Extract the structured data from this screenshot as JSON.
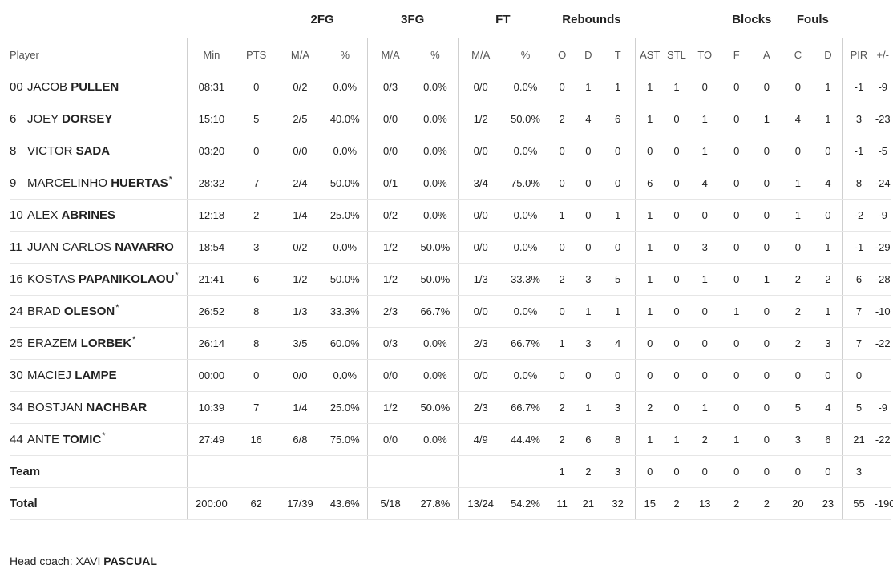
{
  "groups": {
    "fg2": "2FG",
    "fg3": "3FG",
    "ft": "FT",
    "rebounds": "Rebounds",
    "blocks": "Blocks",
    "fouls": "Fouls"
  },
  "columns": {
    "player": "Player",
    "min": "Min",
    "pts": "PTS",
    "fg2_ma": "M/A",
    "fg2_pct": "%",
    "fg3_ma": "M/A",
    "fg3_pct": "%",
    "ft_ma": "M/A",
    "ft_pct": "%",
    "reb_o": "O",
    "reb_d": "D",
    "reb_t": "T",
    "ast": "AST",
    "stl": "STL",
    "to": "TO",
    "blk_f": "F",
    "blk_a": "A",
    "foul_c": "C",
    "foul_d": "D",
    "pir": "PIR",
    "pm": "+/-"
  },
  "players": [
    {
      "num": "00",
      "first": "JACOB",
      "last": "PULLEN",
      "star": "",
      "min": "08:31",
      "pts": "0",
      "fg2_ma": "0/2",
      "fg2_pct": "0.0%",
      "fg3_ma": "0/3",
      "fg3_pct": "0.0%",
      "ft_ma": "0/0",
      "ft_pct": "0.0%",
      "reb_o": "0",
      "reb_d": "1",
      "reb_t": "1",
      "ast": "1",
      "stl": "1",
      "to": "0",
      "blk_f": "0",
      "blk_a": "0",
      "foul_c": "0",
      "foul_d": "1",
      "pir": "-1",
      "pm": "-9"
    },
    {
      "num": "6",
      "first": "JOEY",
      "last": "DORSEY",
      "star": "",
      "min": "15:10",
      "pts": "5",
      "fg2_ma": "2/5",
      "fg2_pct": "40.0%",
      "fg3_ma": "0/0",
      "fg3_pct": "0.0%",
      "ft_ma": "1/2",
      "ft_pct": "50.0%",
      "reb_o": "2",
      "reb_d": "4",
      "reb_t": "6",
      "ast": "1",
      "stl": "0",
      "to": "1",
      "blk_f": "0",
      "blk_a": "1",
      "foul_c": "4",
      "foul_d": "1",
      "pir": "3",
      "pm": "-23"
    },
    {
      "num": "8",
      "first": "VICTOR",
      "last": "SADA",
      "star": "",
      "min": "03:20",
      "pts": "0",
      "fg2_ma": "0/0",
      "fg2_pct": "0.0%",
      "fg3_ma": "0/0",
      "fg3_pct": "0.0%",
      "ft_ma": "0/0",
      "ft_pct": "0.0%",
      "reb_o": "0",
      "reb_d": "0",
      "reb_t": "0",
      "ast": "0",
      "stl": "0",
      "to": "1",
      "blk_f": "0",
      "blk_a": "0",
      "foul_c": "0",
      "foul_d": "0",
      "pir": "-1",
      "pm": "-5"
    },
    {
      "num": "9",
      "first": "MARCELINHO",
      "last": "HUERTAS",
      "star": "*",
      "min": "28:32",
      "pts": "7",
      "fg2_ma": "2/4",
      "fg2_pct": "50.0%",
      "fg3_ma": "0/1",
      "fg3_pct": "0.0%",
      "ft_ma": "3/4",
      "ft_pct": "75.0%",
      "reb_o": "0",
      "reb_d": "0",
      "reb_t": "0",
      "ast": "6",
      "stl": "0",
      "to": "4",
      "blk_f": "0",
      "blk_a": "0",
      "foul_c": "1",
      "foul_d": "4",
      "pir": "8",
      "pm": "-24"
    },
    {
      "num": "10",
      "first": "ALEX",
      "last": "ABRINES",
      "star": "",
      "min": "12:18",
      "pts": "2",
      "fg2_ma": "1/4",
      "fg2_pct": "25.0%",
      "fg3_ma": "0/2",
      "fg3_pct": "0.0%",
      "ft_ma": "0/0",
      "ft_pct": "0.0%",
      "reb_o": "1",
      "reb_d": "0",
      "reb_t": "1",
      "ast": "1",
      "stl": "0",
      "to": "0",
      "blk_f": "0",
      "blk_a": "0",
      "foul_c": "1",
      "foul_d": "0",
      "pir": "-2",
      "pm": "-9"
    },
    {
      "num": "11",
      "first": "JUAN CARLOS",
      "last": "NAVARRO",
      "star": "",
      "min": "18:54",
      "pts": "3",
      "fg2_ma": "0/2",
      "fg2_pct": "0.0%",
      "fg3_ma": "1/2",
      "fg3_pct": "50.0%",
      "ft_ma": "0/0",
      "ft_pct": "0.0%",
      "reb_o": "0",
      "reb_d": "0",
      "reb_t": "0",
      "ast": "1",
      "stl": "0",
      "to": "3",
      "blk_f": "0",
      "blk_a": "0",
      "foul_c": "0",
      "foul_d": "1",
      "pir": "-1",
      "pm": "-29"
    },
    {
      "num": "16",
      "first": "KOSTAS",
      "last": "PAPANIKOLAOU",
      "star": "*",
      "min": "21:41",
      "pts": "6",
      "fg2_ma": "1/2",
      "fg2_pct": "50.0%",
      "fg3_ma": "1/2",
      "fg3_pct": "50.0%",
      "ft_ma": "1/3",
      "ft_pct": "33.3%",
      "reb_o": "2",
      "reb_d": "3",
      "reb_t": "5",
      "ast": "1",
      "stl": "0",
      "to": "1",
      "blk_f": "0",
      "blk_a": "1",
      "foul_c": "2",
      "foul_d": "2",
      "pir": "6",
      "pm": "-28"
    },
    {
      "num": "24",
      "first": "BRAD",
      "last": "OLESON",
      "star": "*",
      "min": "26:52",
      "pts": "8",
      "fg2_ma": "1/3",
      "fg2_pct": "33.3%",
      "fg3_ma": "2/3",
      "fg3_pct": "66.7%",
      "ft_ma": "0/0",
      "ft_pct": "0.0%",
      "reb_o": "0",
      "reb_d": "1",
      "reb_t": "1",
      "ast": "1",
      "stl": "0",
      "to": "0",
      "blk_f": "1",
      "blk_a": "0",
      "foul_c": "2",
      "foul_d": "1",
      "pir": "7",
      "pm": "-10"
    },
    {
      "num": "25",
      "first": "ERAZEM",
      "last": "LORBEK",
      "star": "*",
      "min": "26:14",
      "pts": "8",
      "fg2_ma": "3/5",
      "fg2_pct": "60.0%",
      "fg3_ma": "0/3",
      "fg3_pct": "0.0%",
      "ft_ma": "2/3",
      "ft_pct": "66.7%",
      "reb_o": "1",
      "reb_d": "3",
      "reb_t": "4",
      "ast": "0",
      "stl": "0",
      "to": "0",
      "blk_f": "0",
      "blk_a": "0",
      "foul_c": "2",
      "foul_d": "3",
      "pir": "7",
      "pm": "-22"
    },
    {
      "num": "30",
      "first": "MACIEJ",
      "last": "LAMPE",
      "star": "",
      "min": "00:00",
      "pts": "0",
      "fg2_ma": "0/0",
      "fg2_pct": "0.0%",
      "fg3_ma": "0/0",
      "fg3_pct": "0.0%",
      "ft_ma": "0/0",
      "ft_pct": "0.0%",
      "reb_o": "0",
      "reb_d": "0",
      "reb_t": "0",
      "ast": "0",
      "stl": "0",
      "to": "0",
      "blk_f": "0",
      "blk_a": "0",
      "foul_c": "0",
      "foul_d": "0",
      "pir": "0",
      "pm": ""
    },
    {
      "num": "34",
      "first": "BOSTJAN",
      "last": "NACHBAR",
      "star": "",
      "min": "10:39",
      "pts": "7",
      "fg2_ma": "1/4",
      "fg2_pct": "25.0%",
      "fg3_ma": "1/2",
      "fg3_pct": "50.0%",
      "ft_ma": "2/3",
      "ft_pct": "66.7%",
      "reb_o": "2",
      "reb_d": "1",
      "reb_t": "3",
      "ast": "2",
      "stl": "0",
      "to": "1",
      "blk_f": "0",
      "blk_a": "0",
      "foul_c": "5",
      "foul_d": "4",
      "pir": "5",
      "pm": "-9"
    },
    {
      "num": "44",
      "first": "ANTE",
      "last": "TOMIC",
      "star": "*",
      "min": "27:49",
      "pts": "16",
      "fg2_ma": "6/8",
      "fg2_pct": "75.0%",
      "fg3_ma": "0/0",
      "fg3_pct": "0.0%",
      "ft_ma": "4/9",
      "ft_pct": "44.4%",
      "reb_o": "2",
      "reb_d": "6",
      "reb_t": "8",
      "ast": "1",
      "stl": "1",
      "to": "2",
      "blk_f": "1",
      "blk_a": "0",
      "foul_c": "3",
      "foul_d": "6",
      "pir": "21",
      "pm": "-22"
    }
  ],
  "team": {
    "label": "Team",
    "reb_o": "1",
    "reb_d": "2",
    "reb_t": "3",
    "ast": "0",
    "stl": "0",
    "to": "0",
    "blk_f": "0",
    "blk_a": "0",
    "foul_c": "0",
    "foul_d": "0",
    "pir": "3"
  },
  "total": {
    "label": "Total",
    "min": "200:00",
    "pts": "62",
    "fg2_ma": "17/39",
    "fg2_pct": "43.6%",
    "fg3_ma": "5/18",
    "fg3_pct": "27.8%",
    "ft_ma": "13/24",
    "ft_pct": "54.2%",
    "reb_o": "11",
    "reb_d": "21",
    "reb_t": "32",
    "ast": "15",
    "stl": "2",
    "to": "13",
    "blk_f": "2",
    "blk_a": "2",
    "foul_c": "20",
    "foul_d": "23",
    "pir": "55",
    "pm": "-190"
  },
  "coach": {
    "label": "Head coach:",
    "first": "XAVI",
    "last": "PASCUAL"
  }
}
